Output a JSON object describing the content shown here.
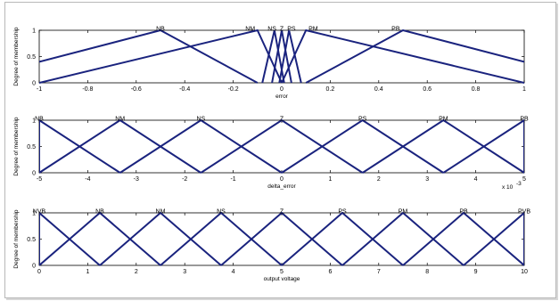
{
  "chart_data": [
    {
      "type": "line",
      "xlabel": "error",
      "ylabel": "Degree of membership",
      "xlim": [
        -1,
        1
      ],
      "ylim": [
        0,
        1
      ],
      "xticks": [
        "-1",
        "-0.8",
        "-0.6",
        "-0.4",
        "-0.2",
        "0",
        "0.2",
        "0.4",
        "0.6",
        "0.8",
        "1"
      ],
      "yticks": [
        "0",
        "0.5",
        "1"
      ],
      "x_exponent": "",
      "series": [
        {
          "name": "NB",
          "x": [
            -1,
            -0.5,
            -0.1
          ],
          "y": [
            0.4,
            1,
            0
          ]
        },
        {
          "name": "NM",
          "x": [
            -1,
            -0.1,
            0
          ],
          "y": [
            0,
            1,
            0
          ]
        },
        {
          "name": "NS",
          "x": [
            -0.08,
            -0.03,
            0.01
          ],
          "y": [
            0,
            1,
            0
          ]
        },
        {
          "name": "Z",
          "x": [
            -0.04,
            0,
            0.04
          ],
          "y": [
            0,
            1,
            0
          ]
        },
        {
          "name": "PS",
          "x": [
            -0.01,
            0.03,
            0.08
          ],
          "y": [
            0,
            1,
            0
          ]
        },
        {
          "name": "PM",
          "x": [
            0,
            0.1,
            1
          ],
          "y": [
            0,
            1,
            0
          ]
        },
        {
          "name": "PB",
          "x": [
            0.1,
            0.5,
            1
          ],
          "y": [
            0,
            1,
            0.4
          ]
        }
      ],
      "labels": [
        {
          "text": "NB",
          "x": -0.5
        },
        {
          "text": "NM",
          "x": -0.13
        },
        {
          "text": "NS",
          "x": -0.04
        },
        {
          "text": "Z",
          "x": 0.0
        },
        {
          "text": "PS",
          "x": 0.04
        },
        {
          "text": "PM",
          "x": 0.13
        },
        {
          "text": "PB",
          "x": 0.47
        }
      ]
    },
    {
      "type": "line",
      "xlabel": "delta_error",
      "ylabel": "Degree of membership",
      "xlim": [
        -5,
        5
      ],
      "ylim": [
        0,
        1
      ],
      "xticks": [
        "-5",
        "-4",
        "-3",
        "-2",
        "-1",
        "0",
        "1",
        "2",
        "3",
        "4",
        "5"
      ],
      "yticks": [
        "0",
        "0.5",
        "1"
      ],
      "x_exponent": "x 10",
      "x_exponent_power": "-3",
      "series": [
        {
          "name": "NB",
          "x": [
            -5,
            -5,
            -3.333
          ],
          "y": [
            0,
            1,
            0
          ]
        },
        {
          "name": "NM",
          "x": [
            -5,
            -3.333,
            -1.667
          ],
          "y": [
            0,
            1,
            0
          ]
        },
        {
          "name": "NS",
          "x": [
            -3.333,
            -1.667,
            0
          ],
          "y": [
            0,
            1,
            0
          ]
        },
        {
          "name": "Z",
          "x": [
            -1.667,
            0,
            1.667
          ],
          "y": [
            0,
            1,
            0
          ]
        },
        {
          "name": "PS",
          "x": [
            0,
            1.667,
            3.333
          ],
          "y": [
            0,
            1,
            0
          ]
        },
        {
          "name": "PM",
          "x": [
            1.667,
            3.333,
            5
          ],
          "y": [
            0,
            1,
            0
          ]
        },
        {
          "name": "PB",
          "x": [
            3.333,
            5,
            5
          ],
          "y": [
            0,
            1,
            0
          ]
        }
      ],
      "labels": [
        {
          "text": "NB",
          "x": -5
        },
        {
          "text": "NM",
          "x": -3.333
        },
        {
          "text": "NS",
          "x": -1.667
        },
        {
          "text": "Z",
          "x": 0
        },
        {
          "text": "PS",
          "x": 1.667
        },
        {
          "text": "PM",
          "x": 3.333
        },
        {
          "text": "PB",
          "x": 5
        }
      ]
    },
    {
      "type": "line",
      "xlabel": "output voltage",
      "ylabel": "Degree of membership",
      "xlim": [
        0,
        10
      ],
      "ylim": [
        0,
        1
      ],
      "xticks": [
        "0",
        "1",
        "2",
        "3",
        "4",
        "5",
        "6",
        "7",
        "8",
        "9",
        "10"
      ],
      "yticks": [
        "0",
        "0.5",
        "1"
      ],
      "x_exponent": "",
      "series": [
        {
          "name": "NVB",
          "x": [
            0,
            0,
            1.25
          ],
          "y": [
            0,
            1,
            0
          ]
        },
        {
          "name": "NB",
          "x": [
            0,
            1.25,
            2.5
          ],
          "y": [
            0,
            1,
            0
          ]
        },
        {
          "name": "NM",
          "x": [
            1.25,
            2.5,
            3.75
          ],
          "y": [
            0,
            1,
            0
          ]
        },
        {
          "name": "NS",
          "x": [
            2.5,
            3.75,
            5
          ],
          "y": [
            0,
            1,
            0
          ]
        },
        {
          "name": "Z",
          "x": [
            3.75,
            5,
            6.25
          ],
          "y": [
            0,
            1,
            0
          ]
        },
        {
          "name": "PS",
          "x": [
            5,
            6.25,
            7.5
          ],
          "y": [
            0,
            1,
            0
          ]
        },
        {
          "name": "PM",
          "x": [
            6.25,
            7.5,
            8.75
          ],
          "y": [
            0,
            1,
            0
          ]
        },
        {
          "name": "PB",
          "x": [
            7.5,
            8.75,
            10
          ],
          "y": [
            0,
            1,
            0
          ]
        },
        {
          "name": "PVB",
          "x": [
            8.75,
            10,
            10
          ],
          "y": [
            0,
            1,
            0
          ]
        }
      ],
      "labels": [
        {
          "text": "NVB",
          "x": 0
        },
        {
          "text": "NB",
          "x": 1.25
        },
        {
          "text": "NM",
          "x": 2.5
        },
        {
          "text": "NS",
          "x": 3.75
        },
        {
          "text": "Z",
          "x": 5
        },
        {
          "text": "PS",
          "x": 6.25
        },
        {
          "text": "PM",
          "x": 7.5
        },
        {
          "text": "PB",
          "x": 8.75
        },
        {
          "text": "PVB",
          "x": 10
        }
      ]
    }
  ],
  "colors": {
    "line": "#1a237e",
    "axis": "#000000",
    "frame": "#b8b8b8",
    "background": "#ffffff"
  }
}
